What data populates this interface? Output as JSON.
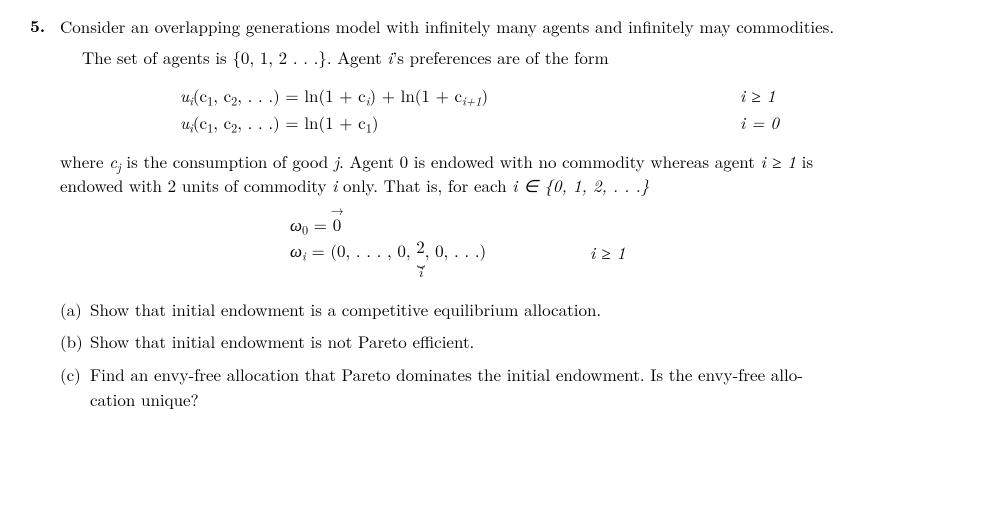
{
  "problem": {
    "number": "5.",
    "intro_line1": "Consider an overlapping generations model with infinitely many agents and infinitely may commodities.",
    "intro_line2_prefix": "The set of agents is ",
    "agents_set": "{0, 1, 2 . . .}",
    "intro_line2_mid": ". Agent ",
    "agent_var": "i",
    "intro_line2_suffix": "’s preferences are of the form",
    "utility": {
      "row1": {
        "lhs_func": "u",
        "lhs_sub": "i",
        "lhs_args": "(c",
        "lhs_arg1_sub": "1",
        "lhs_comma": ", c",
        "lhs_arg2_sub": "2",
        "lhs_dots": ", . . .) = ln(1 + c",
        "rhs_sub1": "i",
        "rhs_mid": ") + ln(1 + c",
        "rhs_sub2": "i+1",
        "rhs_close": ")",
        "cond": "i ≥ 1"
      },
      "row2": {
        "lhs_func": "u",
        "lhs_sub": "i",
        "lhs_args": "(c",
        "lhs_arg1_sub": "1",
        "lhs_comma": ", c",
        "lhs_arg2_sub": "2",
        "lhs_dots": ", . . .) = ln(1 + c",
        "rhs_sub1": "1",
        "rhs_close": ")",
        "cond": "i = 0"
      }
    },
    "mid_para_prefix": "where ",
    "cj_var": "c",
    "cj_sub": "j",
    "mid_para_1": " is the consumption of good ",
    "j_var": "j",
    "mid_para_2": ". Agent 0 is endowed with no commodity whereas agent ",
    "i_ge_1": "i ≥ 1",
    "mid_para_3": " is",
    "mid_para_line2_prefix": "endowed with 2 units of commodity ",
    "mid_para_line2_mid": " only. That is, for each ",
    "set_membership": "i ∈ {0, 1, 2, . . .}",
    "endow": {
      "row1": {
        "omega": "ω",
        "sub": "0",
        "eq": " = ",
        "zerovec": "0",
        "arrow": "→"
      },
      "row2": {
        "omega": "ω",
        "sub": "i",
        "eq": " = (0, . . . , 0, ",
        "two": "2",
        "brace": "⏟",
        "brace_label": "i",
        "tail": ", 0, . . .)",
        "cond": "i ≥ 1"
      }
    },
    "subparts": {
      "a": {
        "label": "(a)",
        "text": "Show that initial endowment is a competitive equilibrium allocation."
      },
      "b": {
        "label": "(b)",
        "text": "Show that initial endowment is not Pareto efficient."
      },
      "c": {
        "label": "(c)",
        "line1": "Find an envy-free allocation that Pareto dominates the initial endowment.  Is the envy-free allo-",
        "line2": "cation unique?"
      }
    }
  }
}
